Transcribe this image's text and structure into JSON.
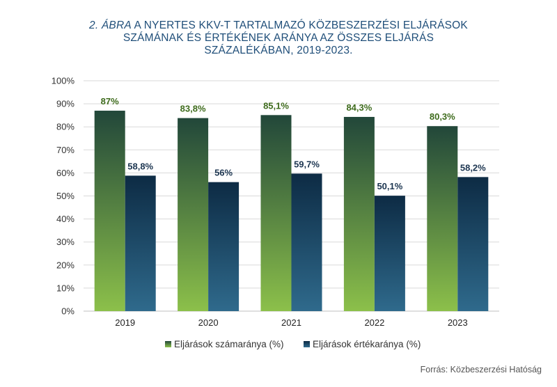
{
  "title": {
    "prefix": "2. ÁBRA",
    "line1": " A NYERTES KKV-T TARTALMAZÓ KÖZBESZERZÉSI ELJÁRÁSOK",
    "line2": "SZÁMÁNAK ÉS ÉRTÉKÉNEK ARÁNYA AZ ÖSSZES ELJÁRÁS",
    "line3": "SZÁZALÉKÁBAN, 2019-2023."
  },
  "source": "Forrás: Közbeszerzési Hatóság",
  "colors": {
    "series1_top": "#22473a",
    "series1_bottom": "#8cc04a",
    "series2_top": "#0d2b44",
    "series2_bottom": "#2f6a8c",
    "label1": "#3e6b1c",
    "label2": "#1c3550",
    "grid": "#d9d9d9",
    "title": "#1f4e79"
  },
  "chart_data": {
    "type": "bar",
    "categories": [
      "2019",
      "2020",
      "2021",
      "2022",
      "2023"
    ],
    "series": [
      {
        "name": "Eljárások számaránya (%)",
        "values": [
          87,
          83.8,
          85.1,
          84.3,
          80.3
        ],
        "labels": [
          "87%",
          "83,8%",
          "85,1%",
          "84,3%",
          "80,3%"
        ]
      },
      {
        "name": "Eljárások értékaránya (%)",
        "values": [
          58.8,
          56,
          59.7,
          50.1,
          58.2
        ],
        "labels": [
          "58,8%",
          "56%",
          "59,7%",
          "50,1%",
          "58,2%"
        ]
      }
    ],
    "y_ticks": [
      "0%",
      "10%",
      "20%",
      "30%",
      "40%",
      "50%",
      "60%",
      "70%",
      "80%",
      "90%",
      "100%"
    ],
    "ylim": [
      0,
      100
    ],
    "grid": true,
    "legend_position": "bottom"
  }
}
